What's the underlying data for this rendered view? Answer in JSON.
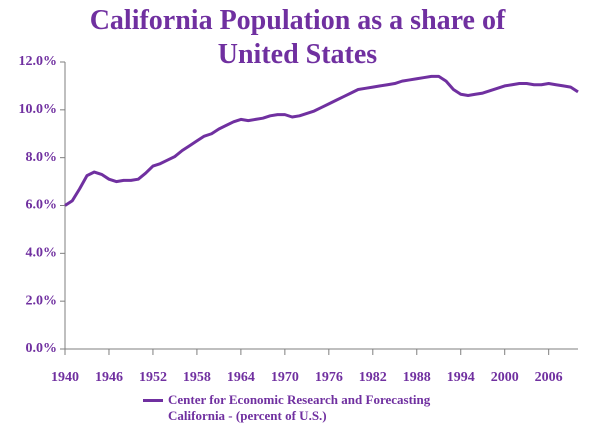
{
  "chart_data": {
    "type": "line",
    "title": "California Population as a share of United States",
    "x": [
      1940,
      1941,
      1942,
      1943,
      1944,
      1945,
      1946,
      1947,
      1948,
      1949,
      1950,
      1951,
      1952,
      1953,
      1954,
      1955,
      1956,
      1957,
      1958,
      1959,
      1960,
      1961,
      1962,
      1963,
      1964,
      1965,
      1966,
      1967,
      1968,
      1969,
      1970,
      1971,
      1972,
      1973,
      1974,
      1975,
      1976,
      1977,
      1978,
      1979,
      1980,
      1981,
      1982,
      1983,
      1984,
      1985,
      1986,
      1987,
      1988,
      1989,
      1990,
      1991,
      1992,
      1993,
      1994,
      1995,
      1996,
      1997,
      1998,
      1999,
      2000,
      2001,
      2002,
      2003,
      2004,
      2005,
      2006,
      2007,
      2008,
      2009,
      2010
    ],
    "series": [
      {
        "name": "Center for Economic Research and Forecasting California - (percent of U.S.)",
        "color": "#7030a0",
        "values": [
          6.0,
          6.2,
          6.7,
          7.25,
          7.4,
          7.3,
          7.1,
          7.0,
          7.05,
          7.05,
          7.1,
          7.35,
          7.65,
          7.75,
          7.9,
          8.05,
          8.3,
          8.5,
          8.7,
          8.9,
          9.0,
          9.2,
          9.35,
          9.5,
          9.6,
          9.55,
          9.6,
          9.65,
          9.75,
          9.8,
          9.8,
          9.7,
          9.75,
          9.85,
          9.95,
          10.1,
          10.25,
          10.4,
          10.55,
          10.7,
          10.85,
          10.9,
          10.95,
          11.0,
          11.05,
          11.1,
          11.2,
          11.25,
          11.3,
          11.35,
          11.4,
          11.4,
          11.2,
          10.85,
          10.65,
          10.6,
          10.65,
          10.7,
          10.8,
          10.9,
          11.0,
          11.05,
          11.1,
          11.1,
          11.05,
          11.05,
          11.1,
          11.05,
          11.0,
          10.95,
          10.75
        ]
      }
    ],
    "xlim": [
      1940,
      2010
    ],
    "xticks": [
      1940,
      1946,
      1952,
      1958,
      1964,
      1970,
      1976,
      1982,
      1988,
      1994,
      2000,
      2006
    ],
    "ylim": [
      0,
      12
    ],
    "yticks": [
      {
        "value": 0,
        "label": "0.0%"
      },
      {
        "value": 2,
        "label": "2.0%"
      },
      {
        "value": 4,
        "label": "4.0%"
      },
      {
        "value": 6,
        "label": "6.0%"
      },
      {
        "value": 8,
        "label": "8.0%"
      },
      {
        "value": 10,
        "label": "10.0%"
      },
      {
        "value": 12,
        "label": "12.0%"
      }
    ]
  }
}
